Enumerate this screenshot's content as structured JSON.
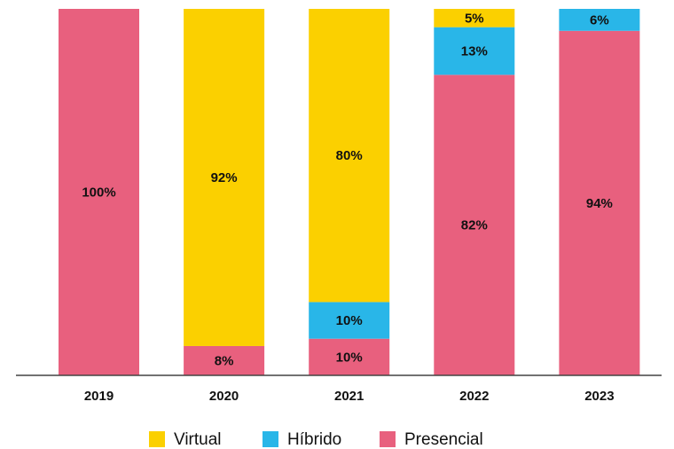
{
  "chart_data": {
    "type": "stacked_bar",
    "categories": [
      "2019",
      "2020",
      "2021",
      "2022",
      "2023"
    ],
    "series": [
      {
        "name": "Virtual",
        "color": "#fbd000",
        "values": [
          0,
          92,
          80,
          5,
          0
        ],
        "value_labels": [
          null,
          "92%",
          "80%",
          "5%",
          null
        ]
      },
      {
        "name": "Híbrido",
        "color": "#29b6e8",
        "values": [
          0,
          0,
          10,
          13,
          6
        ],
        "value_labels": [
          null,
          null,
          "10%",
          "13%",
          "6%"
        ]
      },
      {
        "name": "Presencial",
        "color": "#e8607e",
        "values": [
          100,
          8,
          10,
          82,
          94
        ],
        "value_labels": [
          "100%",
          "8%",
          "10%",
          "82%",
          "94%"
        ]
      }
    ],
    "ylim": [
      0,
      100
    ]
  }
}
